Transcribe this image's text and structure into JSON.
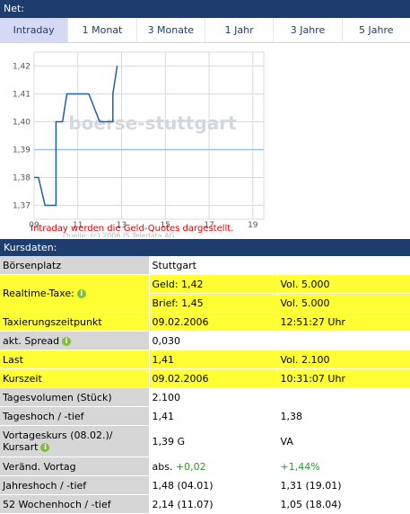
{
  "header": {
    "title": "Net:"
  },
  "tabs": [
    {
      "label": "Intraday",
      "active": true
    },
    {
      "label": "1 Monat"
    },
    {
      "label": "3 Monate"
    },
    {
      "label": "1 Jahr"
    },
    {
      "label": "3 Jahre"
    },
    {
      "label": "5 Jahre"
    }
  ],
  "chart_data": {
    "type": "line",
    "x": [
      9.0,
      9.2,
      9.5,
      9.5,
      10.0,
      10.0,
      10.3,
      10.5,
      11.5,
      12.0,
      12.5,
      12.6,
      12.6,
      12.8
    ],
    "y": [
      1.38,
      1.38,
      1.37,
      1.37,
      1.37,
      1.4,
      1.4,
      1.41,
      1.41,
      1.4,
      1.4,
      1.4,
      1.41,
      1.42
    ],
    "reference_line": 1.39,
    "xlim": [
      9,
      19.5
    ],
    "ylim": [
      1.365,
      1.425
    ],
    "xticks": [
      "09",
      "11",
      "13",
      "15",
      "17",
      "19"
    ],
    "yticks": [
      "1,42",
      "1,41",
      "1,40",
      "1,39",
      "1,38",
      "1,37"
    ],
    "watermark": "boerse-stuttgart",
    "note": "Intraday werden die Geld-Quotes dargestellt.",
    "source": "Quelle: (c) 2006 IS.Teledata AG",
    "colors": {
      "line": "#1f5fa8",
      "reference": "#9fc3df",
      "grid": "#d9d9d9",
      "note": "#e00000"
    }
  },
  "kursdaten": {
    "title": "Kursdaten:",
    "rows": [
      {
        "label": "Börsenplatz",
        "values": [
          "Stuttgart"
        ],
        "style": "plain"
      },
      {
        "label": "Realtime-Taxe:",
        "info": true,
        "style": "yellow",
        "subrows": [
          [
            "Geld: 1,42",
            "Vol. 5.000"
          ],
          [
            "Brief: 1,45",
            "Vol. 5.000"
          ]
        ]
      },
      {
        "label": "Taxierungszeitpunkt",
        "values": [
          "09.02.2006",
          "12:51:27 Uhr"
        ],
        "style": "yellow"
      },
      {
        "label": "akt. Spread",
        "info": true,
        "values": [
          "0,030"
        ],
        "style": "plain"
      },
      {
        "label": "Last",
        "values": [
          "1,41",
          "Vol. 2.100"
        ],
        "style": "yellow"
      },
      {
        "label": "Kurszeit",
        "values": [
          "09.02.2006",
          "10:31:07 Uhr"
        ],
        "style": "yellow"
      },
      {
        "label": "Tagesvolumen (Stück)",
        "values": [
          "2.100"
        ],
        "style": "plain"
      },
      {
        "label": "Tageshoch / -tief",
        "values": [
          "1,41",
          "1,38"
        ],
        "style": "plain"
      },
      {
        "label": "Vortageskurs (08.02.)/ Kursart",
        "info": true,
        "values": [
          "1,39 G",
          "VA"
        ],
        "style": "plain",
        "tall": true
      },
      {
        "label": "Veränd. Vortag",
        "values": [
          "abs. +0,02",
          "+1,44%"
        ],
        "style": "plain",
        "green": true
      },
      {
        "label": "Jahreshoch / -tief",
        "values": [
          "1,48 (04.01)",
          "1,31 (19.01)"
        ],
        "style": "plain"
      },
      {
        "label": "52 Wochenhoch / -tief",
        "values": [
          "2,14 (11.07)",
          "1,05 (18.04)"
        ],
        "style": "plain"
      }
    ]
  }
}
